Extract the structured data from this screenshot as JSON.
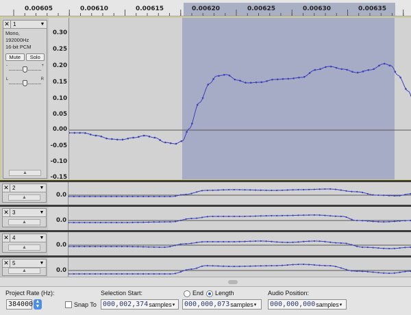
{
  "timeline": {
    "labels": [
      "0.00605",
      "0.00610",
      "0.00615",
      "0.00620",
      "0.00625",
      "0.00630",
      "0.00635"
    ]
  },
  "track1": {
    "name": "1",
    "info1": "Mono, 192000Hz",
    "info2": "16-bit PCM",
    "mute_label": "Mute",
    "solo_label": "Solo",
    "gain_minus": "-",
    "gain_plus": "+",
    "pan_left": "L",
    "pan_right": "R",
    "ticks": [
      "0.30",
      "0.25",
      "0.20",
      "0.15",
      "0.10",
      "0.05",
      "0.00",
      "-0.05",
      "-0.10",
      "-0.15"
    ]
  },
  "small_tracks": [
    {
      "name": "2",
      "tick": "0.0"
    },
    {
      "name": "3",
      "tick": "0.0"
    },
    {
      "name": "4",
      "tick": "0.0"
    },
    {
      "name": "5",
      "tick": "0.0"
    }
  ],
  "selection_bar": {
    "project_rate_label": "Project Rate (Hz):",
    "project_rate_value": "384000",
    "snap_to_label": "Snap To",
    "selection_start_label": "Selection Start:",
    "end_label": "End",
    "length_label": "Length",
    "audio_position_label": "Audio Position:",
    "start_value": "000,002,374",
    "start_unit": "samples",
    "length_value": "000,000,073",
    "length_unit": "samples",
    "position_value": "000,000,000",
    "position_unit": "samples"
  },
  "colors": {
    "waveform": "#3a3fb8",
    "selection": "#a7acc6",
    "track_bg": "#d0d0d0"
  }
}
